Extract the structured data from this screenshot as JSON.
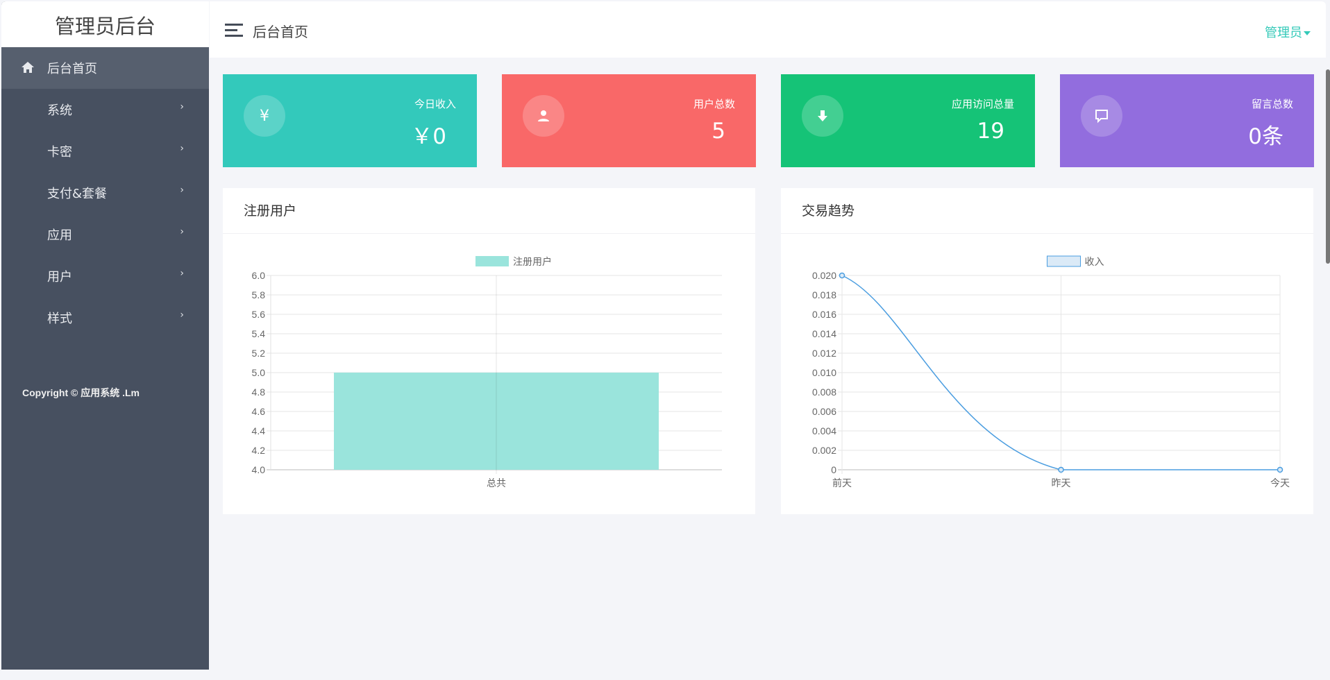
{
  "sidebar": {
    "brand": "管理员后台",
    "items": [
      {
        "label": "后台首页",
        "icon": "home-icon",
        "active": true
      },
      {
        "label": "系统"
      },
      {
        "label": "卡密"
      },
      {
        "label": "支付&套餐"
      },
      {
        "label": "应用"
      },
      {
        "label": "用户"
      },
      {
        "label": "样式"
      }
    ],
    "chevron": "›",
    "copyright": "Copyright © 应用系统 .Lm"
  },
  "header": {
    "title": "后台首页",
    "user": "管理员"
  },
  "cards": [
    {
      "label": "今日收入",
      "value": "￥0",
      "icon": "¥",
      "color": "#33c9bb"
    },
    {
      "label": "用户总数",
      "value": "5",
      "icon": "user-icon",
      "color": "#f96868"
    },
    {
      "label": "应用访问总量",
      "value": "19",
      "icon": "download-icon",
      "color": "#15c377"
    },
    {
      "label": "留言总数",
      "value": "0条",
      "icon": "comment-icon",
      "color": "#926dde"
    }
  ],
  "panels": {
    "left_title": "注册用户",
    "right_title": "交易趋势"
  },
  "chart_data": [
    {
      "type": "bar",
      "categories": [
        "总共"
      ],
      "series": [
        {
          "name": "注册用户",
          "values": [
            5
          ]
        }
      ],
      "ylim": [
        4.0,
        6.0
      ],
      "yticks": [
        "6.0",
        "5.8",
        "5.6",
        "5.4",
        "5.2",
        "5.0",
        "4.8",
        "4.6",
        "4.4",
        "4.2",
        "4.0"
      ],
      "color": "#9ae4dc",
      "grid": true,
      "legend": "top"
    },
    {
      "type": "line",
      "categories": [
        "前天",
        "昨天",
        "今天"
      ],
      "series": [
        {
          "name": "收入",
          "values": [
            0.02,
            0,
            0
          ]
        }
      ],
      "ylim": [
        0,
        0.02
      ],
      "yticks": [
        "0.020",
        "0.018",
        "0.016",
        "0.014",
        "0.012",
        "0.010",
        "0.008",
        "0.006",
        "0.004",
        "0.002",
        "0"
      ],
      "color": "#4a9de0",
      "grid": true,
      "legend": "top"
    }
  ]
}
